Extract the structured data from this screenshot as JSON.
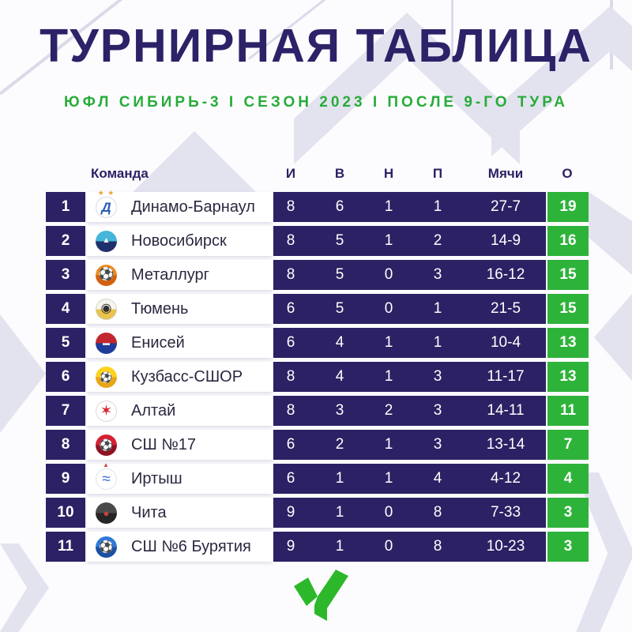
{
  "header": {
    "title": "ТУРНИРНАЯ ТАБЛИЦА",
    "subtitle": "ЮФЛ СИБИРЬ-3 I СЕЗОН 2023 I ПОСЛЕ 9-ГО ТУРА"
  },
  "colors": {
    "navy": "#2b2164",
    "points_green": "#2eb33a",
    "subtitle_green": "#27ac39",
    "brand_green": "#2db82b",
    "title_navy": "#2b2268",
    "team_text": "#2a2840"
  },
  "table": {
    "columns": {
      "team": "Команда",
      "played": "И",
      "won": "В",
      "drawn": "Н",
      "lost": "П",
      "goals": "Мячи",
      "points": "О"
    },
    "rows": [
      {
        "pos": "1",
        "team": "Динамо-Барнаул",
        "played": "8",
        "won": "6",
        "drawn": "1",
        "lost": "1",
        "goals": "27-7",
        "points": "19",
        "logo": {
          "name": "crest-dinamo-barnaul-icon",
          "colors": [
            "#ffffff",
            "#ffffff"
          ],
          "border": "#d9d9e8",
          "glyph": "Д",
          "glyph_color": "#2a5cb8",
          "glyph_size": 17,
          "glyph_italic": true,
          "topper": "★ ★",
          "topper_color": "#eaa53e"
        }
      },
      {
        "pos": "2",
        "team": "Новосибирск",
        "played": "8",
        "won": "5",
        "drawn": "1",
        "lost": "2",
        "goals": "14-9",
        "points": "16",
        "logo": {
          "name": "crest-novosibirsk-icon",
          "colors": [
            "#45b6d9",
            "#20306b"
          ],
          "glyph": "▲",
          "glyph_color": "#ffffff",
          "glyph_size": 10
        }
      },
      {
        "pos": "3",
        "team": "Металлург",
        "played": "8",
        "won": "5",
        "drawn": "0",
        "lost": "3",
        "goals": "16-12",
        "points": "15",
        "logo": {
          "name": "crest-metallurg-icon",
          "colors": [
            "#ef8b1e",
            "#d2600f"
          ],
          "glyph": "⚽",
          "glyph_color": "#222222",
          "glyph_size": 16
        }
      },
      {
        "pos": "4",
        "team": "Тюмень",
        "played": "6",
        "won": "5",
        "drawn": "0",
        "lost": "1",
        "goals": "21-5",
        "points": "15",
        "logo": {
          "name": "crest-tyumen-icon",
          "colors": [
            "#f6f6ef",
            "#e8c24a"
          ],
          "border": "#d4d4c8",
          "glyph": "◉",
          "glyph_color": "#2f2f2f",
          "glyph_size": 16
        }
      },
      {
        "pos": "5",
        "team": "Енисей",
        "played": "6",
        "won": "4",
        "drawn": "1",
        "lost": "1",
        "goals": "10-4",
        "points": "13",
        "logo": {
          "name": "crest-yenisey-icon",
          "colors": [
            "#c1272d",
            "#1f3c99"
          ],
          "glyph": "▬",
          "glyph_color": "#e8e8f4",
          "glyph_size": 9
        }
      },
      {
        "pos": "6",
        "team": "Кузбасс-СШОР",
        "played": "8",
        "won": "4",
        "drawn": "1",
        "lost": "3",
        "goals": "11-17",
        "points": "13",
        "logo": {
          "name": "crest-kuzbass-sshor-icon",
          "colors": [
            "#ffd21f",
            "#e8a616"
          ],
          "glyph": "⚽",
          "glyph_color": "#7a1010",
          "glyph_size": 13
        }
      },
      {
        "pos": "7",
        "team": "Алтай",
        "played": "8",
        "won": "3",
        "drawn": "2",
        "lost": "3",
        "goals": "14-11",
        "points": "11",
        "logo": {
          "name": "crest-altai-icon",
          "colors": [
            "#ffffff",
            "#ffffff"
          ],
          "border": "#e0d6d6",
          "glyph": "✶",
          "glyph_color": "#d62027",
          "glyph_size": 19
        }
      },
      {
        "pos": "8",
        "team": "СШ №17",
        "played": "6",
        "won": "2",
        "drawn": "1",
        "lost": "3",
        "goals": "13-14",
        "points": "7",
        "logo": {
          "name": "crest-ssh-17-icon",
          "colors": [
            "#d61f32",
            "#8f1222"
          ],
          "glyph": "⚽",
          "glyph_color": "#ffffff",
          "glyph_size": 14
        }
      },
      {
        "pos": "9",
        "team": "Иртыш",
        "played": "6",
        "won": "1",
        "drawn": "1",
        "lost": "4",
        "goals": "4-12",
        "points": "4",
        "logo": {
          "name": "crest-irtysh-icon",
          "colors": [
            "#ffffff",
            "#ffffff"
          ],
          "border": "#dfe3ee",
          "glyph": "≈",
          "glyph_color": "#2a6bd4",
          "glyph_size": 19,
          "topper": "▴",
          "topper_color": "#d63333"
        }
      },
      {
        "pos": "10",
        "team": "Чита",
        "played": "9",
        "won": "1",
        "drawn": "0",
        "lost": "8",
        "goals": "7-33",
        "points": "3",
        "logo": {
          "name": "crest-chita-icon",
          "colors": [
            "#4a4a4a",
            "#252525"
          ],
          "glyph": "●",
          "glyph_color": "#c2453a",
          "glyph_size": 13
        }
      },
      {
        "pos": "11",
        "team": "СШ №6 Бурятия",
        "played": "9",
        "won": "1",
        "drawn": "0",
        "lost": "8",
        "goals": "10-23",
        "points": "3",
        "logo": {
          "name": "crest-ssh-6-buryatia-icon",
          "colors": [
            "#2f7ad9",
            "#1c4fa5"
          ],
          "glyph": "⚽",
          "glyph_color": "#e8f0ff",
          "glyph_size": 15
        }
      }
    ]
  },
  "footer": {
    "brand_icon": "yufl-checkmark-logo"
  }
}
